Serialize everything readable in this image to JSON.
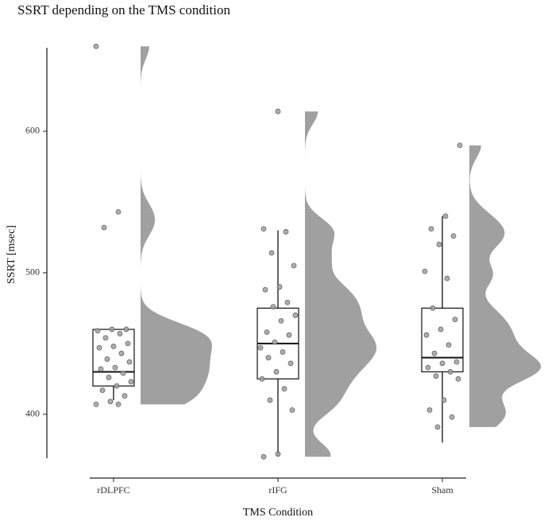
{
  "chart_data": {
    "type": "raincloud",
    "title": "SSRT depending on the TMS condition",
    "x_label": "TMS Condition",
    "y_label": "SSRT [msec]",
    "categories": [
      "rDLPFC",
      "rIFG",
      "Sham"
    ],
    "boxes": [
      {
        "whislo": 410,
        "q1": 420,
        "med": 430,
        "q3": 460,
        "whishi": 460
      },
      {
        "whislo": 370,
        "q1": 425,
        "med": 450,
        "q3": 475,
        "whishi": 530
      },
      {
        "whislo": 380,
        "q1": 430,
        "med": 440,
        "q3": 475,
        "whishi": 540
      }
    ],
    "points": [
      [
        660,
        543,
        532,
        460,
        460,
        459,
        457,
        454,
        450,
        448,
        447,
        443,
        439,
        437,
        433,
        432,
        429,
        426,
        423,
        420,
        417,
        413,
        409,
        407,
        407
      ],
      [
        614,
        531,
        529,
        514,
        505,
        490,
        488,
        479,
        476,
        470,
        466,
        458,
        456,
        451,
        447,
        444,
        440,
        436,
        430,
        425,
        418,
        410,
        403,
        372,
        370
      ],
      [
        590,
        540,
        531,
        526,
        520,
        501,
        496,
        475,
        467,
        460,
        456,
        449,
        443,
        437,
        436,
        433,
        430,
        427,
        425,
        410,
        403,
        398,
        391
      ]
    ],
    "color": "#a0a0a0",
    "ylim": [
      369,
      659
    ],
    "yticks": [
      400,
      500,
      600
    ]
  }
}
